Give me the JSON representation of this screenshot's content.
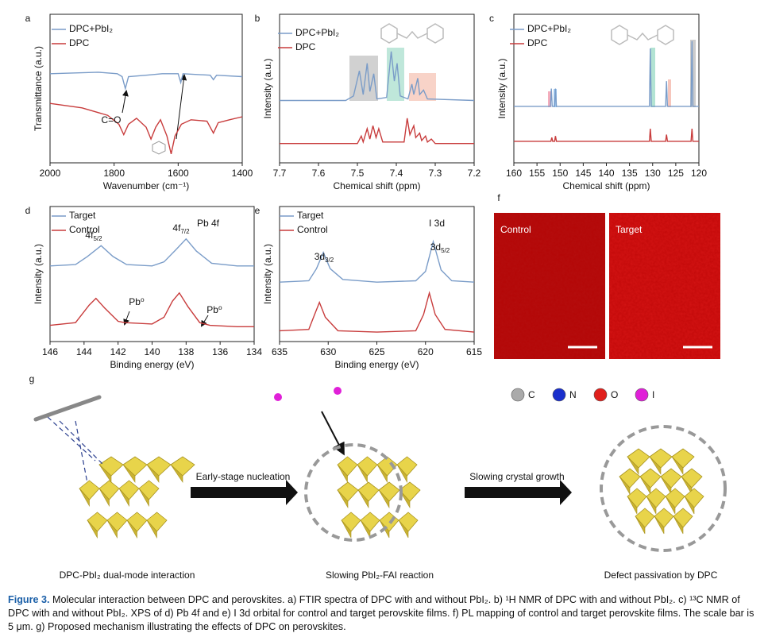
{
  "chart_data": [
    {
      "type": "line",
      "panel": "a",
      "xlabel": "Wavenumber (cm⁻¹)",
      "ylabel": "Transmittance (a.u.)",
      "xlim": [
        2000,
        1400
      ],
      "ylim": [
        0,
        10
      ],
      "xticks": [
        2000,
        1800,
        1600,
        1400
      ],
      "legend": "upper left",
      "series": [
        {
          "name": "DPC+PbI₂",
          "color": "#7a9cc8",
          "x": [
            2000,
            1850,
            1790,
            1775,
            1765,
            1755,
            1700,
            1650,
            1600,
            1592,
            1585,
            1500,
            1490,
            1480,
            1400
          ],
          "values": [
            6.0,
            6.1,
            6.0,
            5.8,
            5.0,
            5.8,
            5.9,
            6.0,
            6.0,
            5.4,
            6.0,
            5.9,
            5.6,
            5.9,
            5.8
          ]
        },
        {
          "name": "DPC",
          "color": "#c83c3c",
          "x": [
            2000,
            1900,
            1820,
            1785,
            1770,
            1755,
            1730,
            1700,
            1685,
            1670,
            1655,
            1635,
            1622,
            1610,
            1590,
            1560,
            1510,
            1490,
            1475,
            1440,
            1400
          ],
          "values": [
            4.0,
            3.7,
            3.2,
            2.6,
            1.9,
            2.6,
            3.0,
            2.4,
            1.6,
            2.4,
            2.9,
            1.8,
            0.6,
            1.8,
            2.6,
            2.9,
            2.8,
            2.0,
            2.7,
            2.9,
            3.1
          ]
        }
      ],
      "annotations": [
        {
          "text": "C=O"
        }
      ]
    },
    {
      "type": "line",
      "panel": "b",
      "xlabel": "Chemical shift (ppm)",
      "ylabel": "Intensity (a.u.)",
      "xlim": [
        7.7,
        7.2
      ],
      "ylim": [
        0,
        10
      ],
      "xticks": [
        7.7,
        7.6,
        7.5,
        7.4,
        7.3,
        7.2
      ],
      "legend": "upper left",
      "series": [
        {
          "name": "DPC+PbI₂",
          "color": "#7a9cc8",
          "x": [
            7.7,
            7.53,
            7.51,
            7.495,
            7.485,
            7.475,
            7.468,
            7.458,
            7.45,
            7.425,
            7.413,
            7.405,
            7.398,
            7.39,
            7.37,
            7.36,
            7.355,
            7.345,
            7.34,
            7.33,
            7.32,
            7.2
          ],
          "values": [
            4.2,
            4.2,
            4.5,
            6.2,
            4.6,
            6.7,
            4.8,
            6.0,
            4.3,
            4.4,
            7.5,
            5.5,
            6.7,
            4.5,
            4.3,
            5.3,
            4.6,
            5.7,
            4.6,
            4.9,
            4.3,
            4.2
          ]
        },
        {
          "name": "DPC",
          "color": "#c83c3c",
          "x": [
            7.7,
            7.5,
            7.49,
            7.485,
            7.475,
            7.468,
            7.46,
            7.452,
            7.445,
            7.435,
            7.38,
            7.372,
            7.365,
            7.355,
            7.35,
            7.34,
            7.335,
            7.325,
            7.32,
            7.31,
            7.3,
            7.2
          ],
          "values": [
            1.3,
            1.3,
            1.8,
            1.4,
            2.3,
            1.6,
            2.5,
            1.7,
            2.3,
            1.4,
            1.4,
            3.0,
            1.9,
            2.5,
            1.7,
            2.0,
            1.5,
            1.8,
            1.4,
            1.6,
            1.3,
            1.3
          ]
        }
      ],
      "annotations": []
    },
    {
      "type": "line",
      "panel": "c",
      "xlabel": "Chemical shift (ppm)",
      "ylabel": "Intensity (a.u.)",
      "xlim": [
        160,
        120
      ],
      "ylim": [
        0,
        10
      ],
      "xticks": [
        160,
        155,
        150,
        145,
        140,
        135,
        130,
        125,
        120
      ],
      "legend": "upper left",
      "series": [
        {
          "name": "DPC+PbI₂",
          "color": "#7a9cc8",
          "x": [
            160,
            152.1,
            151.9,
            151.7,
            151.2,
            151.0,
            150.8,
            130.7,
            130.5,
            130.3,
            127.2,
            127.0,
            126.8,
            121.7,
            121.5,
            121.3,
            120
          ],
          "values": [
            3.8,
            3.8,
            5.0,
            3.8,
            3.8,
            5.0,
            3.8,
            3.8,
            7.7,
            3.8,
            3.8,
            5.5,
            3.8,
            3.8,
            8.2,
            3.8,
            3.8
          ]
        },
        {
          "name": "DPC",
          "color": "#c83c3c",
          "x": [
            160,
            152.0,
            151.8,
            151.6,
            151.2,
            151.0,
            150.8,
            130.7,
            130.5,
            130.3,
            127.2,
            127.0,
            126.8,
            121.7,
            121.5,
            121.3,
            120
          ],
          "values": [
            1.45,
            1.45,
            1.7,
            1.45,
            1.45,
            1.8,
            1.45,
            1.45,
            2.3,
            1.45,
            1.45,
            1.9,
            1.45,
            1.45,
            2.3,
            1.45,
            1.45
          ]
        }
      ],
      "annotations": []
    },
    {
      "type": "line",
      "panel": "d",
      "xlabel": "Binding energy (eV)",
      "ylabel": "Intensity (a.u.)",
      "xlim": [
        146,
        134
      ],
      "ylim": [
        0,
        10
      ],
      "xticks": [
        146,
        144,
        142,
        140,
        138,
        136,
        134
      ],
      "legend": "upper left",
      "series": [
        {
          "name": "Target",
          "color": "#7a9cc8",
          "x": [
            146,
            144.5,
            143.8,
            143.0,
            142.3,
            141.5,
            140,
            139.3,
            138.6,
            138.0,
            137.4,
            136.5,
            135,
            134
          ],
          "values": [
            5.6,
            5.7,
            6.3,
            7.1,
            6.3,
            5.7,
            5.6,
            5.9,
            6.8,
            7.6,
            6.7,
            5.8,
            5.6,
            5.6
          ]
        },
        {
          "name": "Control",
          "color": "#c83c3c",
          "x": [
            146,
            144.5,
            143.7,
            143.3,
            142.8,
            142,
            141.6,
            140,
            139.3,
            138.8,
            138.4,
            137.9,
            137.2,
            136.6,
            135,
            134
          ],
          "values": [
            1.2,
            1.4,
            2.7,
            3.2,
            2.5,
            1.5,
            1.4,
            1.3,
            1.8,
            3.0,
            3.6,
            2.6,
            1.4,
            1.2,
            1.1,
            1.1
          ]
        }
      ],
      "annotations": [
        {
          "text": "Pb 4f"
        },
        {
          "text": "4f",
          "sub": "5/2"
        },
        {
          "text": "4f",
          "sub": "7/2"
        },
        {
          "text": "Pb⁰"
        },
        {
          "text": "Pb⁰"
        }
      ]
    },
    {
      "type": "line",
      "panel": "e",
      "xlabel": "Binding energy (eV)",
      "ylabel": "Intensity (a.u.)",
      "xlim": [
        635,
        615
      ],
      "ylim": [
        0,
        10
      ],
      "xticks": [
        635,
        630,
        625,
        620,
        615
      ],
      "legend": "upper left",
      "series": [
        {
          "name": "Target",
          "color": "#7a9cc8",
          "x": [
            635,
            632,
            631.2,
            630.5,
            629.8,
            628.5,
            625,
            621,
            620,
            619.2,
            618.4,
            617.3,
            615
          ],
          "values": [
            4.4,
            4.5,
            5.4,
            6.6,
            5.4,
            4.6,
            4.4,
            4.5,
            5.2,
            7.4,
            5.3,
            4.5,
            4.4
          ]
        },
        {
          "name": "Control",
          "color": "#c83c3c",
          "x": [
            635,
            632,
            631.4,
            630.9,
            630.3,
            629,
            625,
            621,
            620.2,
            619.6,
            619,
            618,
            615
          ],
          "values": [
            0.8,
            0.9,
            2.0,
            2.9,
            1.8,
            0.8,
            0.7,
            0.8,
            2.0,
            3.6,
            2.0,
            0.9,
            0.7
          ]
        }
      ],
      "annotations": [
        {
          "text": "I 3d"
        },
        {
          "text": "3d",
          "sub": "3/2"
        },
        {
          "text": "3d",
          "sub": "5/2"
        }
      ]
    }
  ],
  "pl_mapping": {
    "panel": "f",
    "images": [
      "Control",
      "Target"
    ]
  },
  "mechanism": {
    "panel": "g",
    "atoms": [
      "C",
      "N",
      "O",
      "I"
    ],
    "steps": [
      "Early-stage nucleation",
      "Slowing crystal growth"
    ],
    "stages": [
      "DPC-PbI₂ dual-mode interaction",
      "Slowing PbI₂-FAI reaction",
      "Defect passivation by DPC"
    ]
  },
  "caption": {
    "label": "Figure 3.",
    "text": "Molecular interaction between DPC and perovskites. a) FTIR spectra of DPC with and without PbI₂. b) ¹H NMR of DPC with and without PbI₂. c) ¹³C NMR of DPC with and without PbI₂. XPS of d) Pb 4f and e) I 3d orbital for control and target perovskite films. f) PL mapping of control and target perovskite films. The scale bar is 5 μm. g) Proposed mechanism illustrating the effects of DPC on perovskites."
  }
}
